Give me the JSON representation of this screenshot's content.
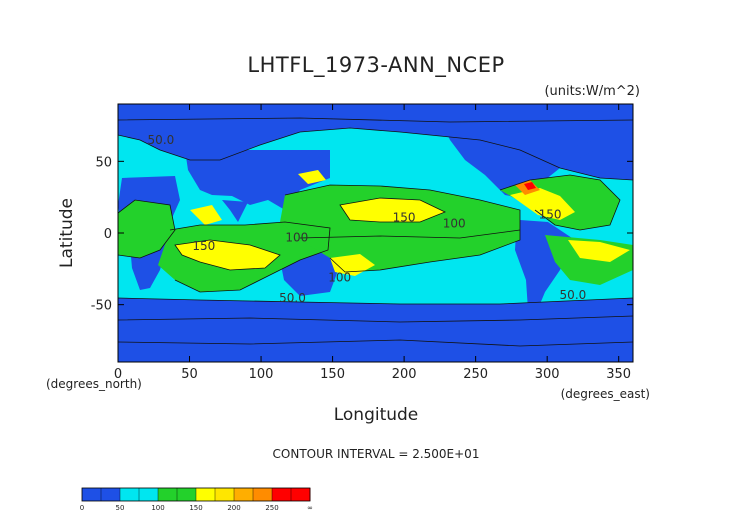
{
  "chart_data": {
    "type": "heatmap",
    "title": "LHTFL_1973-ANN_NCEP",
    "units": "(units:W/m^2)",
    "xlabel": "Longitude",
    "ylabel": "Latitude",
    "x_unit_label": "(degrees_east)",
    "y_unit_label": "(degrees_north)",
    "xlim": [
      0,
      360
    ],
    "ylim": [
      -90,
      90
    ],
    "x_ticks": [
      0,
      50,
      100,
      150,
      200,
      250,
      300,
      350
    ],
    "y_ticks": [
      -50,
      0,
      50
    ],
    "contour_interval": "CONTOUR INTERVAL = 2.500E+01",
    "contour_labels": [
      {
        "text": "50.0",
        "lon": 30,
        "lat": 62
      },
      {
        "text": "150",
        "lon": 60,
        "lat": -12
      },
      {
        "text": "100",
        "lon": 125,
        "lat": -6
      },
      {
        "text": "100",
        "lon": 155,
        "lat": -34
      },
      {
        "text": "50.0",
        "lon": 122,
        "lat": -48
      },
      {
        "text": "150",
        "lon": 200,
        "lat": 8
      },
      {
        "text": "100",
        "lon": 235,
        "lat": 4
      },
      {
        "text": "150",
        "lon": 302,
        "lat": 10
      },
      {
        "text": "50.0",
        "lon": 318,
        "lat": -46
      }
    ],
    "colorbar": {
      "ticks": [
        "0",
        "50",
        "100",
        "150",
        "200",
        "250",
        "∞"
      ],
      "colors": [
        "#1e50e6",
        "#1e50e6",
        "#00e6f0",
        "#00e6f0",
        "#23d12b",
        "#23d12b",
        "#ffff00",
        "#ffe600",
        "#ffae00",
        "#ff8c00",
        "#ff0000",
        "#ff0000"
      ]
    }
  }
}
